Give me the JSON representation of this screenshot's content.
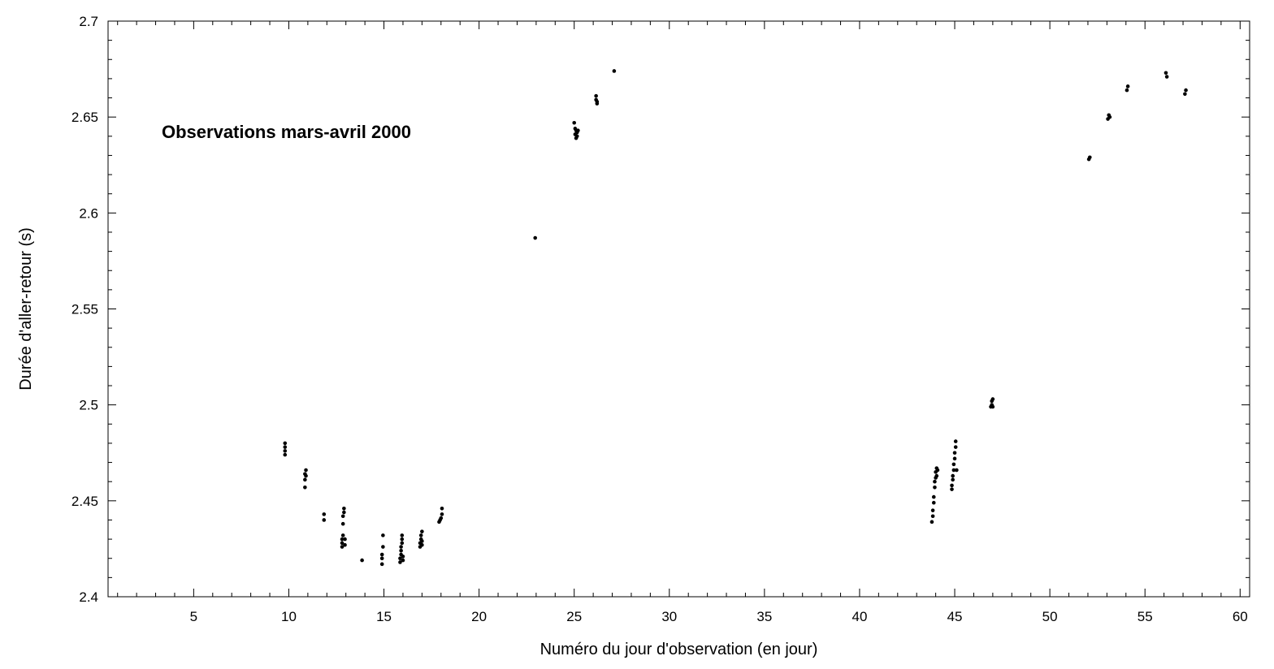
{
  "chart_data": {
    "type": "scatter",
    "title": "",
    "annotation": "Observations mars-avril 2000",
    "xlabel": "Numéro du jour d'observation (en jour)",
    "ylabel": "Durée d'aller-retour (s)",
    "xlim": [
      0.5,
      60.5
    ],
    "ylim": [
      2.4,
      2.7
    ],
    "x_ticks": [
      5,
      10,
      15,
      20,
      25,
      30,
      35,
      40,
      45,
      50,
      55,
      60
    ],
    "x_tick_labels": [
      "5",
      "10",
      "15",
      "20",
      "25",
      "30",
      "35",
      "40",
      "45",
      "50",
      "55",
      "60"
    ],
    "y_ticks": [
      2.4,
      2.45,
      2.5,
      2.55,
      2.6,
      2.65,
      2.7
    ],
    "y_tick_labels": [
      "2.4",
      "2.45",
      "2.5",
      "2.55",
      "2.6",
      "2.65",
      "2.7"
    ],
    "grid": false,
    "marker_color": "#000000",
    "series": [
      {
        "x": [
          9.8,
          9.8,
          9.8,
          9.8,
          10.85,
          10.85,
          10.85,
          10.9,
          10.9,
          11.85,
          11.85,
          12.8,
          12.8,
          12.8,
          12.85,
          12.85,
          12.85,
          12.9,
          12.9,
          12.95,
          12.95,
          13.85,
          14.9,
          14.9,
          14.9,
          14.95,
          14.95,
          15.85,
          15.85,
          15.9,
          15.9,
          15.9,
          15.95,
          15.95,
          15.95,
          16.0,
          16.0,
          16.9,
          16.9,
          16.95,
          16.95,
          17.0,
          17.0,
          17.0,
          17.9,
          17.95,
          18.0,
          18.05,
          18.05,
          22.95,
          25.0,
          25.05,
          25.05,
          25.1,
          25.1,
          25.15,
          25.15,
          25.2,
          26.15,
          26.15,
          26.2,
          26.2,
          27.1,
          43.8,
          43.85,
          43.85,
          43.9,
          43.9,
          43.95,
          43.95,
          44.0,
          44.0,
          44.05,
          44.05,
          44.1,
          44.85,
          44.85,
          44.9,
          44.9,
          44.95,
          44.95,
          45.0,
          45.0,
          45.05,
          45.05,
          45.1,
          46.9,
          46.95,
          46.95,
          47.0,
          47.0,
          52.05,
          52.1,
          53.05,
          53.1,
          53.15,
          54.05,
          54.1,
          56.1,
          56.15,
          57.1,
          57.15
        ],
        "y": [
          2.474,
          2.476,
          2.478,
          2.48,
          2.457,
          2.461,
          2.464,
          2.466,
          2.463,
          2.44,
          2.443,
          2.426,
          2.428,
          2.43,
          2.432,
          2.438,
          2.442,
          2.444,
          2.446,
          2.427,
          2.43,
          2.419,
          2.417,
          2.42,
          2.422,
          2.426,
          2.432,
          2.418,
          2.42,
          2.422,
          2.424,
          2.426,
          2.428,
          2.43,
          2.432,
          2.419,
          2.421,
          2.426,
          2.428,
          2.43,
          2.432,
          2.434,
          2.427,
          2.429,
          2.439,
          2.44,
          2.441,
          2.443,
          2.446,
          2.587,
          2.647,
          2.644,
          2.641,
          2.639,
          2.643,
          2.64,
          2.642,
          2.643,
          2.661,
          2.659,
          2.657,
          2.658,
          2.674,
          2.439,
          2.442,
          2.445,
          2.449,
          2.452,
          2.457,
          2.46,
          2.462,
          2.465,
          2.467,
          2.463,
          2.466,
          2.456,
          2.458,
          2.461,
          2.463,
          2.466,
          2.469,
          2.472,
          2.475,
          2.478,
          2.481,
          2.466,
          2.499,
          2.5,
          2.502,
          2.499,
          2.503,
          2.628,
          2.629,
          2.649,
          2.651,
          2.65,
          2.664,
          2.666,
          2.673,
          2.671,
          2.662,
          2.664
        ]
      }
    ]
  }
}
